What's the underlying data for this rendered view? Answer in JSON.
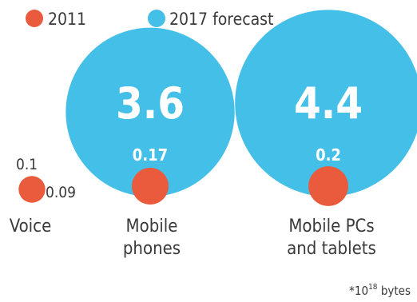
{
  "colors": {
    "series_2011": "#ea5a3c",
    "series_2017": "#44bfe8"
  },
  "chart_data": {
    "type": "bubble",
    "series": [
      {
        "name": "2011",
        "values": [
          0.09,
          0.17,
          0.2
        ]
      },
      {
        "name": "2017 forecast",
        "values": [
          0.1,
          3.6,
          4.4
        ]
      }
    ],
    "categories": [
      {
        "label_lines": [
          "Voice"
        ]
      },
      {
        "label_lines": [
          "Mobile",
          "phones"
        ]
      },
      {
        "label_lines": [
          "Mobile PCs",
          "and tablets"
        ]
      }
    ],
    "value_labels": {
      "2011": [
        "0.09",
        "0.17",
        "0.2"
      ],
      "2017 forecast": [
        "0.1",
        "3.6",
        "4.4"
      ]
    },
    "footnote_base": "*10",
    "footnote_exp": "18",
    "footnote_unit": " bytes"
  }
}
